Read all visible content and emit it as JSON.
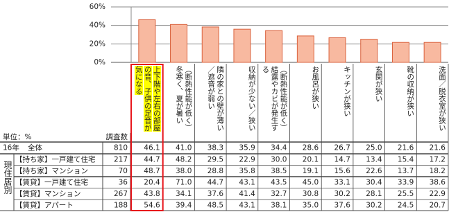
{
  "chart_data": {
    "type": "bar",
    "categories": [
      "上下階や左右の部屋の音、子供の足音が気になる",
      "（断熱性能が低く）冬寒く、夏が暑い",
      "隣の家との壁が薄い／遮音が弱い",
      "収納が少ない／狭い",
      "（断熱性能が低く）結露やカビが発生する",
      "お風呂が狭い",
      "キッチンが狭い",
      "玄関が狭い",
      "靴の収納が狭い",
      "洗面／脱衣室が狭い"
    ],
    "values": [
      46.1,
      41.0,
      38.3,
      35.9,
      34.4,
      28.6,
      26.7,
      25.0,
      21.6,
      21.6
    ],
    "color": "#f8b9a0",
    "edge_color": "#d9603b",
    "ylim": [
      0,
      60
    ],
    "yticks": [
      {
        "value": 0,
        "label": "0%"
      },
      {
        "value": 20,
        "label": "20%"
      },
      {
        "value": 40,
        "label": "40%"
      },
      {
        "value": 60,
        "label": "60%"
      }
    ],
    "grid": true
  },
  "table": {
    "unit_label": "単位：%",
    "count_header": "調査数",
    "total": {
      "year": "16年",
      "label": "全体",
      "n": 810,
      "values": [
        46.1,
        41.0,
        38.3,
        35.9,
        34.4,
        28.6,
        26.7,
        25.0,
        21.6,
        21.6
      ]
    },
    "group": {
      "label": "現住居別",
      "rows": [
        {
          "label": "【持ち家】一戸建て住宅",
          "n": 217,
          "values": [
            44.7,
            48.2,
            29.5,
            22.9,
            30.0,
            20.1,
            14.7,
            13.4,
            15.4,
            17.2
          ]
        },
        {
          "label": "【持ち家】マンション",
          "n": 70,
          "values": [
            48.7,
            38.0,
            28.8,
            35.8,
            38.5,
            19.1,
            15.6,
            22.6,
            13.7,
            18.2
          ]
        },
        {
          "label": "【賃貸】一戸建て住宅",
          "n": 36,
          "values": [
            20.4,
            71.0,
            44.7,
            43.1,
            43.5,
            45.0,
            33.1,
            30.4,
            33.9,
            38.6
          ]
        },
        {
          "label": "【賃貸】マンション",
          "n": 267,
          "values": [
            43.8,
            34.1,
            37.6,
            41.4,
            32.7,
            30.8,
            30.2,
            28.1,
            25.5,
            22.9
          ]
        },
        {
          "label": "【賃貸】アパート",
          "n": 188,
          "values": [
            54.6,
            39.4,
            48.5,
            43.1,
            38.1,
            35.0,
            37.6,
            30.2,
            24.5,
            20.7
          ]
        }
      ]
    }
  }
}
